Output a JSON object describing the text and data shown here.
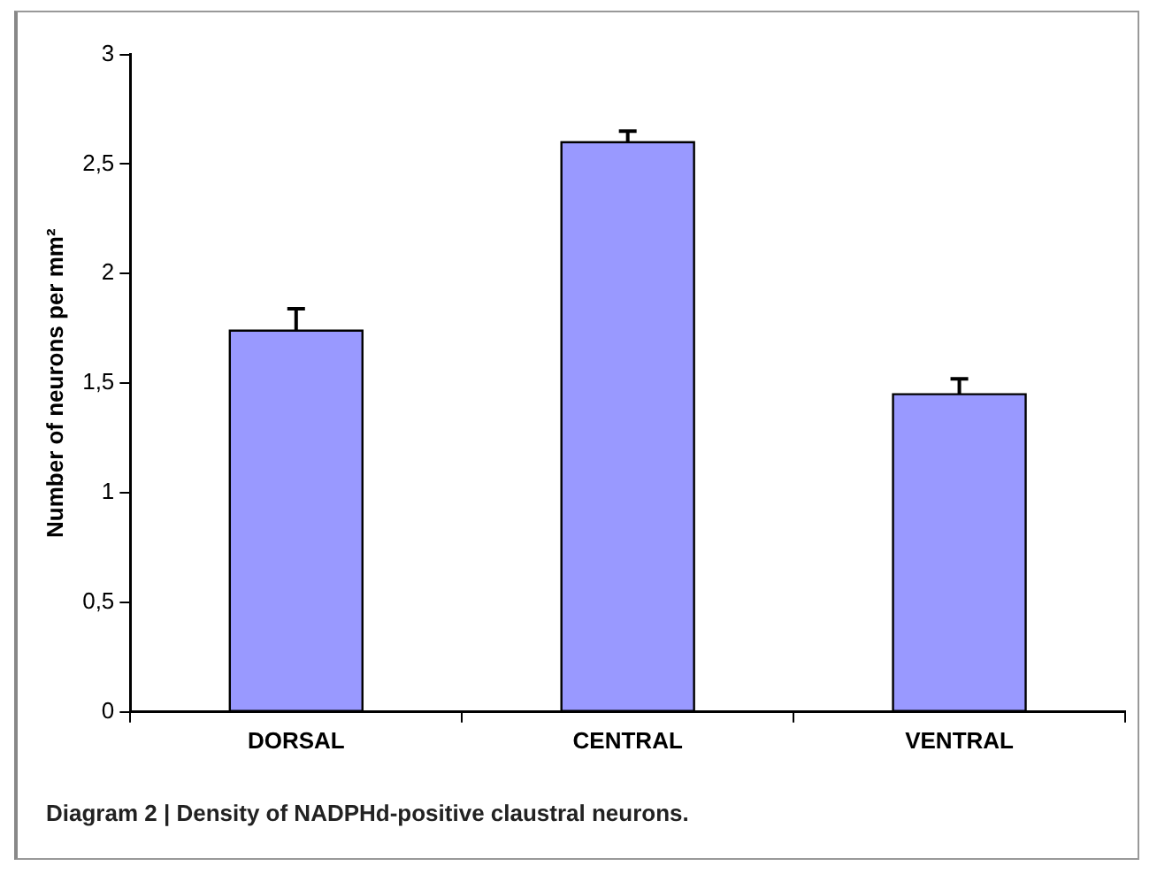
{
  "chart_data": {
    "type": "bar",
    "title": "Diagram 2 | Density of NADPHd-positive claustral neurons.",
    "ylabel": "Number of neurons per mm²",
    "categories": [
      "DORSAL",
      "CENTRAL",
      "VENTRAL"
    ],
    "series": [
      {
        "color": "#9999ff",
        "values": [
          1.74,
          2.6,
          1.45
        ],
        "errors": [
          [
            1.74,
            1.84
          ],
          [
            2.6,
            2.65
          ],
          [
            1.45,
            1.52
          ]
        ]
      }
    ],
    "ylim": [
      0,
      3
    ],
    "yticks": [
      {
        "value": 0,
        "label": "0"
      },
      {
        "value": 0.5,
        "label": "0,5"
      },
      {
        "value": 1,
        "label": "1"
      },
      {
        "value": 1.5,
        "label": "1,5"
      },
      {
        "value": 2,
        "label": "2"
      },
      {
        "value": 2.5,
        "label": "2,5"
      },
      {
        "value": 3,
        "label": "3"
      }
    ],
    "grid": false,
    "legend": false
  }
}
